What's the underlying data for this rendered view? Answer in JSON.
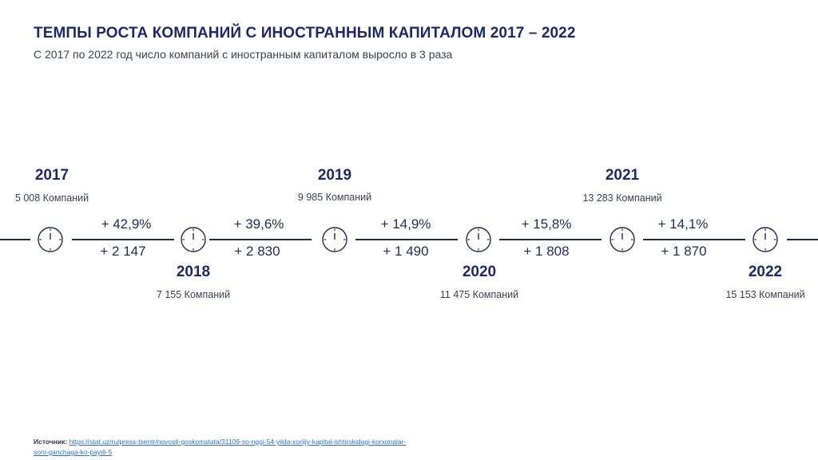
{
  "title": "ТЕМПЫ РОСТА КОМПАНИЙ С ИНОСТРАННЫМ КАПИТАЛОМ 2017 – 2022",
  "subtitle": "С 2017 по  2022 год число компаний с иностранным капиталом выросло в 3 раза",
  "years": [
    {
      "year": "2017",
      "count": "5 008 Компаний"
    },
    {
      "year": "2018",
      "count": "7 155 Компаний"
    },
    {
      "year": "2019",
      "count": "9 985 Компаний"
    },
    {
      "year": "2020",
      "count": "11 475 Компаний"
    },
    {
      "year": "2021",
      "count": "13 283 Компаний"
    },
    {
      "year": "2022",
      "count": "15 153 Компаний"
    }
  ],
  "growth": [
    {
      "pct": "+ 42,9%",
      "abs": "+ 2 147"
    },
    {
      "pct": "+ 39,6%",
      "abs": "+ 2 830"
    },
    {
      "pct": "+ 14,9%",
      "abs": "+ 1 490"
    },
    {
      "pct": "+ 15,8%",
      "abs": "+ 1 808"
    },
    {
      "pct": "+ 14,1%",
      "abs": "+ 1 870"
    }
  ],
  "source": {
    "label": "Источник:",
    "url": "https://stat.uz/ru/press-tsentr/novosti-goskomstata/31109-so-nggi-54-yilda-xorijiy-kapital-ishtirokidagi-korxonalar-soni-ganchaga-ko-paydi-5"
  },
  "icons": {
    "timeline_marker": "clock-icon"
  },
  "colors": {
    "accent": "#1d2a66",
    "link": "#2e6fc4"
  }
}
